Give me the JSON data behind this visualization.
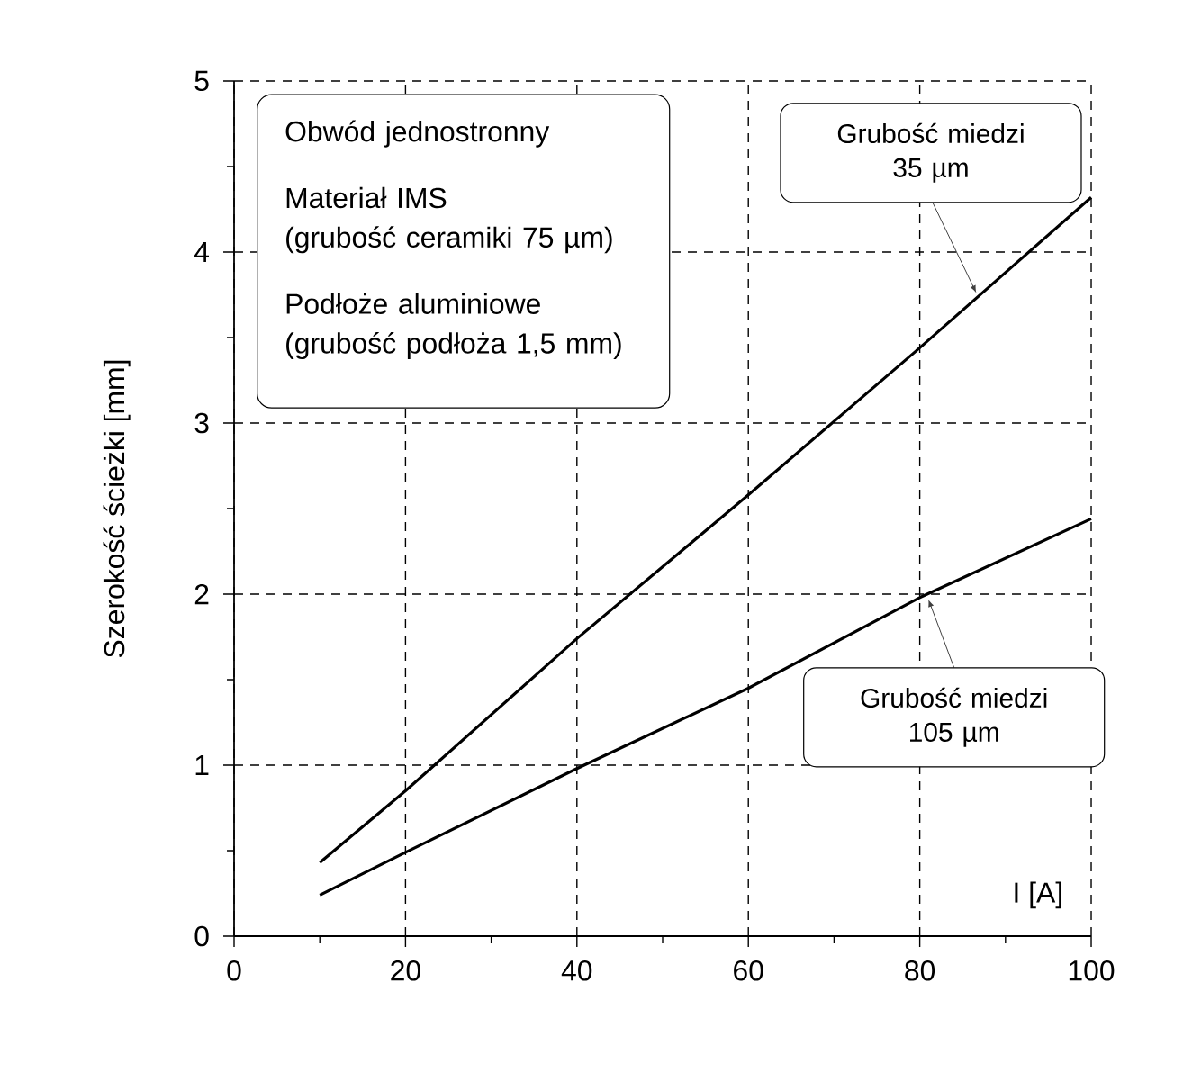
{
  "chart_data": {
    "type": "line",
    "xlabel": "I [A]",
    "ylabel": "Szerokość ścieżki [mm]",
    "annotations": [
      "Obwód jednostronny",
      "Materiał IMS",
      "(grubość ceramiki 75 µm)",
      "Podłoże aluminiowe",
      "(grubość podłoża 1,5 mm)"
    ],
    "xlim": [
      0,
      100
    ],
    "ylim": [
      0,
      5
    ],
    "xticks": [
      0,
      {
        "value": 10,
        "label": null
      },
      20,
      {
        "value": 30,
        "label": null
      },
      40,
      {
        "value": 50,
        "label": null
      },
      60,
      {
        "value": 70,
        "label": null
      },
      80,
      {
        "value": 90,
        "label": null
      },
      100
    ],
    "yticks": [
      0,
      {
        "value": 0.5,
        "label": null
      },
      1,
      {
        "value": 1.5,
        "label": null
      },
      2,
      {
        "value": 2.5,
        "label": null
      },
      3,
      {
        "value": 3.5,
        "label": null
      },
      4,
      {
        "value": 4.5,
        "label": null
      },
      5
    ],
    "grid": true,
    "series": [
      {
        "name": "Grubość miedzi 35 µm",
        "color": "#000000",
        "x": [
          10,
          20,
          40,
          60,
          80,
          100
        ],
        "values": [
          0.43,
          0.85,
          1.74,
          2.58,
          3.44,
          4.32
        ]
      },
      {
        "name": "Grubość miedzi 105 µm",
        "color": "#000000",
        "x": [
          10,
          20,
          40,
          60,
          80,
          100
        ],
        "values": [
          0.24,
          0.49,
          0.98,
          1.45,
          1.98,
          2.44
        ]
      }
    ]
  }
}
